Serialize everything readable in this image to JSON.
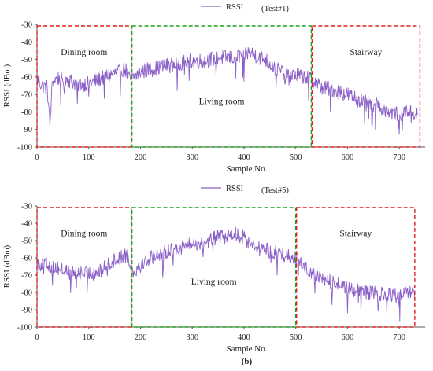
{
  "chart_data": [
    {
      "type": "line",
      "legend": "RSSI",
      "test_label": "(Test#1)",
      "xlabel": "Sample No.",
      "ylabel": "RSSI (dBm)",
      "xlim": [
        0,
        750
      ],
      "ylim": [
        -100,
        -30
      ],
      "xticks": [
        0,
        100,
        200,
        300,
        400,
        500,
        600,
        700
      ],
      "yticks": [
        -30,
        -40,
        -50,
        -60,
        -70,
        -80,
        -90,
        -100
      ],
      "grid": false,
      "legend_position": "top-center",
      "line_color": "#8a5fc7",
      "series": [
        {
          "name": "RSSI",
          "approx_profile": [
            [
              0,
              -61
            ],
            [
              10,
              -65
            ],
            [
              20,
              -66
            ],
            [
              25,
              -88
            ],
            [
              30,
              -62
            ],
            [
              50,
              -60
            ],
            [
              70,
              -63
            ],
            [
              90,
              -64
            ],
            [
              110,
              -63
            ],
            [
              130,
              -60
            ],
            [
              150,
              -58
            ],
            [
              170,
              -55
            ],
            [
              180,
              -62
            ],
            [
              200,
              -57
            ],
            [
              230,
              -55
            ],
            [
              260,
              -53
            ],
            [
              290,
              -51
            ],
            [
              320,
              -51
            ],
            [
              350,
              -49
            ],
            [
              380,
              -49
            ],
            [
              410,
              -46
            ],
            [
              440,
              -50
            ],
            [
              460,
              -55
            ],
            [
              480,
              -58
            ],
            [
              500,
              -59
            ],
            [
              520,
              -60
            ],
            [
              530,
              -61
            ],
            [
              550,
              -66
            ],
            [
              570,
              -67
            ],
            [
              600,
              -70
            ],
            [
              630,
              -74
            ],
            [
              660,
              -76
            ],
            [
              680,
              -80
            ],
            [
              700,
              -81
            ],
            [
              720,
              -79
            ],
            [
              735,
              -82
            ]
          ]
        }
      ],
      "regions": [
        {
          "label": "Dining room",
          "x_start": 0,
          "x_end": 182,
          "color": "#e02020"
        },
        {
          "label": "Living room",
          "x_start": 182,
          "x_end": 530,
          "color": "#1aa31a"
        },
        {
          "label": "Stairway",
          "x_start": 530,
          "x_end": 740,
          "color": "#e02020"
        }
      ]
    },
    {
      "type": "line",
      "legend": "RSSI",
      "test_label": "(Test#5)",
      "xlabel": "Sample No.",
      "ylabel": "RSSI (dBm)",
      "caption": "(b)",
      "xlim": [
        0,
        750
      ],
      "ylim": [
        -100,
        -30
      ],
      "xticks": [
        0,
        100,
        200,
        300,
        400,
        500,
        600,
        700
      ],
      "yticks": [
        -30,
        -40,
        -50,
        -60,
        -70,
        -80,
        -90,
        -100
      ],
      "grid": false,
      "legend_position": "top-center",
      "line_color": "#8a5fc7",
      "series": [
        {
          "name": "RSSI",
          "approx_profile": [
            [
              0,
              -63
            ],
            [
              20,
              -64
            ],
            [
              40,
              -66
            ],
            [
              60,
              -68
            ],
            [
              80,
              -69
            ],
            [
              100,
              -69
            ],
            [
              120,
              -68
            ],
            [
              140,
              -63
            ],
            [
              160,
              -60
            ],
            [
              175,
              -58
            ],
            [
              185,
              -68
            ],
            [
              200,
              -64
            ],
            [
              230,
              -58
            ],
            [
              260,
              -55
            ],
            [
              290,
              -53
            ],
            [
              320,
              -51
            ],
            [
              350,
              -48
            ],
            [
              380,
              -46
            ],
            [
              400,
              -48
            ],
            [
              420,
              -53
            ],
            [
              440,
              -55
            ],
            [
              460,
              -57
            ],
            [
              480,
              -58
            ],
            [
              495,
              -59
            ],
            [
              500,
              -60
            ],
            [
              520,
              -66
            ],
            [
              550,
              -72
            ],
            [
              580,
              -75
            ],
            [
              610,
              -78
            ],
            [
              640,
              -80
            ],
            [
              670,
              -81
            ],
            [
              700,
              -82
            ],
            [
              720,
              -80
            ],
            [
              730,
              -82
            ]
          ]
        }
      ],
      "regions": [
        {
          "label": "Dining room",
          "x_start": 0,
          "x_end": 182,
          "color": "#e02020"
        },
        {
          "label": "Living room",
          "x_start": 182,
          "x_end": 500,
          "color": "#1aa31a"
        },
        {
          "label": "Stairway",
          "x_start": 500,
          "x_end": 730,
          "color": "#e02020"
        }
      ]
    }
  ]
}
